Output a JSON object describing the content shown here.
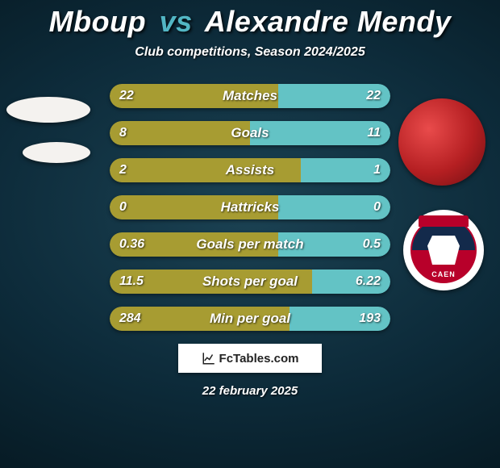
{
  "title": {
    "player1": "Mboup",
    "vs": "vs",
    "player2": "Alexandre Mendy"
  },
  "subtitle": "Club competitions, Season 2024/2025",
  "date": "22 february 2025",
  "branding": "FcTables.com",
  "colors": {
    "bar_left": "#a79c32",
    "bar_mid": "#a79c32",
    "bar_right": "#63c3c5",
    "title_p1": "#ffffff",
    "title_vs": "#52b6c4",
    "title_p2": "#ffffff"
  },
  "rows": [
    {
      "label": "Matches",
      "left_val": "22",
      "right_val": "22",
      "left_pct": 40,
      "mid_pct": 20,
      "right_pct": 40
    },
    {
      "label": "Goals",
      "left_val": "8",
      "right_val": "11",
      "left_pct": 38,
      "mid_pct": 12,
      "right_pct": 50
    },
    {
      "label": "Assists",
      "left_val": "2",
      "right_val": "1",
      "left_pct": 52,
      "mid_pct": 16,
      "right_pct": 32
    },
    {
      "label": "Hattricks",
      "left_val": "0",
      "right_val": "0",
      "left_pct": 40,
      "mid_pct": 20,
      "right_pct": 40
    },
    {
      "label": "Goals per match",
      "left_val": "0.36",
      "right_val": "0.5",
      "left_pct": 34,
      "mid_pct": 26,
      "right_pct": 40
    },
    {
      "label": "Shots per goal",
      "left_val": "11.5",
      "right_val": "6.22",
      "left_pct": 48,
      "mid_pct": 24,
      "right_pct": 28
    },
    {
      "label": "Min per goal",
      "left_val": "284",
      "right_val": "193",
      "left_pct": 42,
      "mid_pct": 22,
      "right_pct": 36
    }
  ],
  "club_badge_text": "CAEN"
}
